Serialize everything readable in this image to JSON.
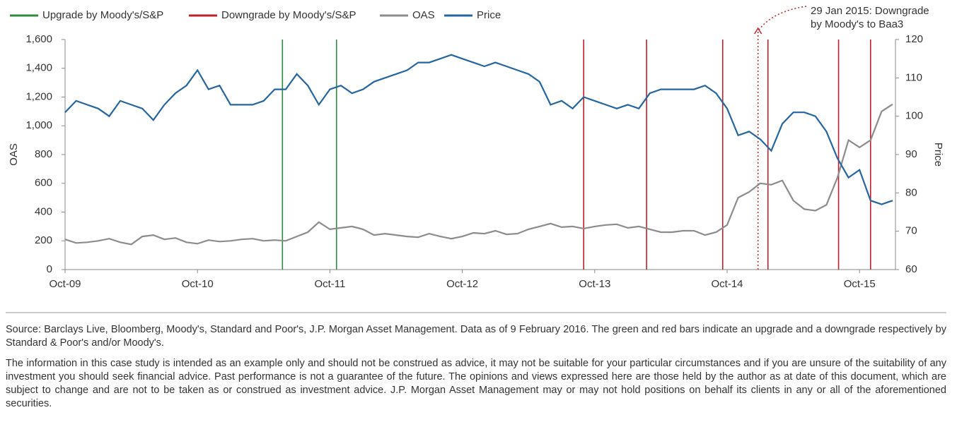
{
  "chart_data": {
    "type": "line",
    "categories": [
      "Oct-09",
      null,
      null,
      null,
      null,
      null,
      null,
      null,
      null,
      null,
      null,
      null,
      "Oct-10",
      null,
      null,
      null,
      null,
      null,
      null,
      null,
      null,
      null,
      null,
      null,
      "Oct-11",
      null,
      null,
      null,
      null,
      null,
      null,
      null,
      null,
      null,
      null,
      null,
      "Oct-12",
      null,
      null,
      null,
      null,
      null,
      null,
      null,
      null,
      null,
      null,
      null,
      "Oct-13",
      null,
      null,
      null,
      null,
      null,
      null,
      null,
      null,
      null,
      null,
      null,
      "Oct-14",
      null,
      null,
      null,
      null,
      null,
      null,
      null,
      null,
      null,
      null,
      null,
      "Oct-15",
      null,
      null,
      null
    ],
    "series": [
      {
        "name": "OAS",
        "color": "#8c8c8c",
        "values": [
          210,
          185,
          190,
          200,
          215,
          190,
          175,
          230,
          240,
          210,
          220,
          190,
          180,
          205,
          195,
          200,
          210,
          215,
          200,
          205,
          200,
          230,
          260,
          330,
          280,
          290,
          300,
          280,
          240,
          250,
          240,
          230,
          225,
          250,
          230,
          215,
          230,
          255,
          250,
          270,
          245,
          250,
          280,
          300,
          320,
          295,
          300,
          285,
          300,
          310,
          315,
          290,
          300,
          280,
          260,
          260,
          270,
          270,
          240,
          260,
          310,
          500,
          540,
          600,
          590,
          620,
          480,
          420,
          410,
          450,
          640,
          900,
          850,
          900,
          1100,
          1150
        ]
      },
      {
        "name": "Price",
        "color": "#2565a0",
        "axis": "y2",
        "values": [
          101,
          104,
          103,
          102,
          100,
          104,
          103,
          102,
          99,
          103,
          106,
          108,
          112,
          107,
          108,
          103,
          103,
          103,
          104,
          107,
          107,
          111,
          108,
          103,
          107,
          108,
          106,
          107,
          109,
          110,
          111,
          112,
          114,
          114,
          115,
          116,
          115,
          114,
          113,
          114,
          113,
          112,
          111,
          109,
          103,
          104,
          102,
          105,
          104,
          103,
          102,
          103,
          102,
          106,
          107,
          107,
          107,
          107,
          108,
          106,
          102,
          95,
          96,
          94,
          91,
          98,
          101,
          101,
          100,
          96,
          89,
          84,
          86,
          78,
          77,
          78
        ]
      }
    ],
    "events": [
      {
        "name": "Upgrade by Moody's/S&P",
        "color": "#2e8b3e",
        "at": [
          19.7,
          24.6
        ]
      },
      {
        "name": "Downgrade by Moody's/S&P",
        "color": "#c0202a",
        "at": [
          47.0,
          52.7,
          59.6,
          63.7,
          70.1,
          73.0
        ]
      }
    ],
    "annotation": {
      "lines": [
        "29 Jan 2015: Downgrade",
        "by Moody's to Baa3"
      ],
      "at": 62.8
    },
    "ylabel": "OAS",
    "y2label": "Price",
    "ylim": [
      0,
      1600
    ],
    "yticks": [
      0,
      200,
      400,
      600,
      800,
      {
        "value": 1000,
        "label": "1,000"
      },
      {
        "value": 1200,
        "label": "1,200"
      },
      {
        "value": 1400,
        "label": "1,400"
      },
      {
        "value": 1600,
        "label": "1,600"
      }
    ],
    "y2lim": [
      60,
      120
    ],
    "y2ticks": [
      60,
      70,
      80,
      90,
      100,
      110,
      120
    ]
  },
  "footnotes": [
    "Source: Barclays Live, Bloomberg, Moody's, Standard and Poor's, J.P. Morgan Asset Management. Data as of 9 February 2016. The green and red bars indicate an upgrade and a downgrade respectively by Standard & Poor's and/or Moody's.",
    "The information in this case study is intended as an example only and should not be construed as advice, it may not be suitable for your particular circumstances and if you are unsure of the suitability of any investment you should seek financial advice. Past performance is not a guarantee of the future. The opinions and views expressed here are those held by the author as at date of this document, which are subject to change and are not to be taken as or construed as investment advice. J.P. Morgan Asset Management may or may not hold positions on behalf its clients in any or all of the aforementioned securities."
  ]
}
